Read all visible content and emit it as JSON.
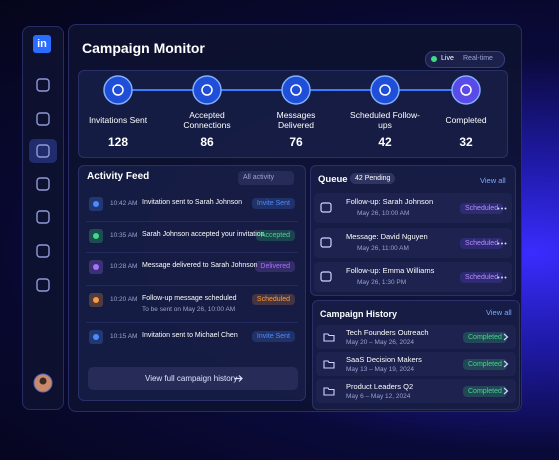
{
  "sidebar": {
    "logo": "in"
  },
  "header": {
    "title": "Campaign Monitor",
    "status": "Live",
    "mode": "Real-time"
  },
  "pipeline": [
    {
      "label": "Invitations Sent",
      "value": "128"
    },
    {
      "label": "Accepted Connections",
      "value": "86"
    },
    {
      "label": "Messages Delivered",
      "value": "76"
    },
    {
      "label": "Scheduled Follow-ups",
      "value": "42"
    },
    {
      "label": "Completed",
      "value": "32"
    }
  ],
  "activity_feed": {
    "title": "Activity Feed",
    "filter": "All activity",
    "items": [
      {
        "time": "10:42 AM",
        "text": "Invitation sent to Sarah Johnson",
        "status": "Invite Sent",
        "color": "#4a8cff"
      },
      {
        "time": "10:35 AM",
        "text": "Sarah Johnson accepted your invitation",
        "status": "Accepted",
        "color": "#3ddc84"
      },
      {
        "time": "10:28 AM",
        "text": "Message delivered to Sarah Johnson",
        "status": "Delivered",
        "color": "#a970ff"
      },
      {
        "time": "10:20 AM",
        "text": "Follow-up message scheduled",
        "sub": "To be sent on May 26, 10:00 AM",
        "status": "Scheduled",
        "color": "#ff9a3c"
      },
      {
        "time": "10:15 AM",
        "text": "Invitation sent to Michael Chen",
        "status": "Invite Sent",
        "color": "#4a8cff"
      }
    ],
    "footer": "View full campaign history"
  },
  "queue": {
    "title": "Queue",
    "badge": "42 Pending",
    "link": "View all",
    "items": [
      {
        "title": "Follow-up: Sarah Johnson",
        "date": "May 26, 10:00 AM",
        "status": "Scheduled"
      },
      {
        "title": "Message: David Nguyen",
        "date": "May 26, 11:00 AM",
        "status": "Scheduled"
      },
      {
        "title": "Follow-up: Emma Williams",
        "date": "May 26, 1:30 PM",
        "status": "Scheduled"
      }
    ]
  },
  "campaign_history": {
    "title": "Campaign History",
    "link": "View all",
    "items": [
      {
        "name": "Tech Founders Outreach",
        "dates": "May 20 – May 26, 2024",
        "status": "Completed"
      },
      {
        "name": "SaaS Decision Makers",
        "dates": "May 13 – May 19, 2024",
        "status": "Completed"
      },
      {
        "name": "Product Leaders Q2",
        "dates": "May 6 – May 12, 2024",
        "status": "Completed"
      }
    ]
  }
}
